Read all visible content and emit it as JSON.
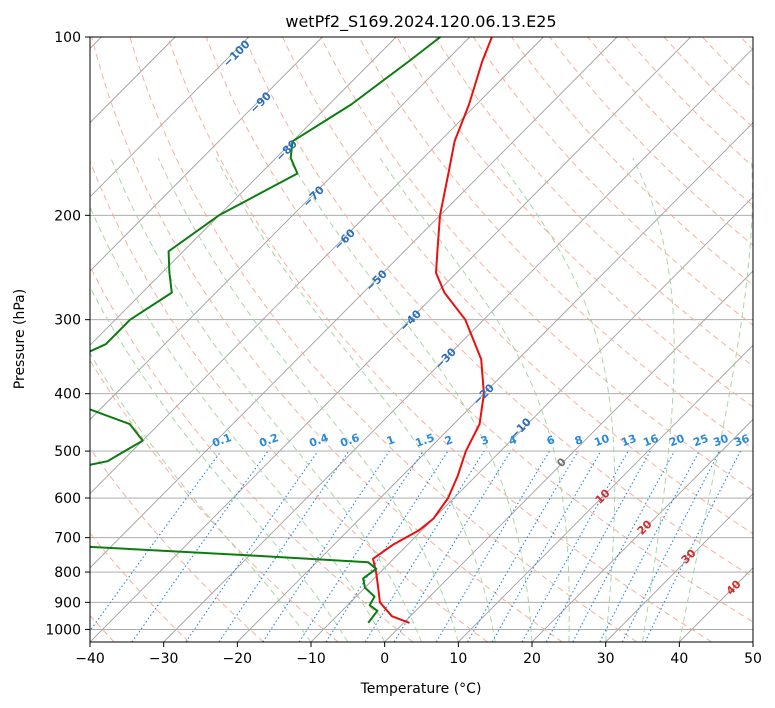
{
  "chart_data": {
    "type": "skew-t",
    "title": "wetPf2_S169.2024.120.06.13.E25",
    "xlabel": "Temperature (°C)",
    "ylabel": "Pressure (hPa)",
    "xlim": [
      -40,
      50
    ],
    "ylim": [
      1050,
      100
    ],
    "y_scale": "log",
    "grid": true,
    "xticks": [
      "−40",
      "−30",
      "−20",
      "−10",
      "0",
      "10",
      "20",
      "30",
      "40",
      "50"
    ],
    "xtick_values": [
      -40,
      -30,
      -20,
      -10,
      0,
      10,
      20,
      30,
      40,
      50
    ],
    "yticks": [
      "100",
      "200",
      "300",
      "400",
      "500",
      "600",
      "700",
      "800",
      "900",
      "1000"
    ],
    "ytick_values": [
      100,
      200,
      300,
      400,
      500,
      600,
      700,
      800,
      900,
      1000
    ],
    "series": [
      {
        "name": "",
        "role": "temperature",
        "color": "#e8110f",
        "points": [
          [
            975,
            0.8
          ],
          [
            950,
            -2.5
          ],
          [
            900,
            -6.0
          ],
          [
            850,
            -8.2
          ],
          [
            800,
            -10.6
          ],
          [
            760,
            -12.8
          ],
          [
            720,
            -12.0
          ],
          [
            680,
            -10.4
          ],
          [
            650,
            -10.0
          ],
          [
            600,
            -10.8
          ],
          [
            550,
            -12.5
          ],
          [
            500,
            -14.7
          ],
          [
            450,
            -16.5
          ],
          [
            400,
            -20.0
          ],
          [
            350,
            -25.0
          ],
          [
            300,
            -32.5
          ],
          [
            270,
            -39.0
          ],
          [
            250,
            -42.8
          ],
          [
            230,
            -45.5
          ],
          [
            200,
            -50.0
          ],
          [
            170,
            -54.5
          ],
          [
            150,
            -58.0
          ],
          [
            130,
            -61.0
          ],
          [
            110,
            -65.0
          ],
          [
            100,
            -67.0
          ]
        ]
      },
      {
        "name": "",
        "role": "dewpoint",
        "color": "#0b7d10",
        "points": [
          [
            975,
            -4.8
          ],
          [
            930,
            -5.2
          ],
          [
            910,
            -7.0
          ],
          [
            880,
            -7.5
          ],
          [
            850,
            -10.0
          ],
          [
            820,
            -11.5
          ],
          [
            790,
            -11.0
          ],
          [
            770,
            -13.0
          ],
          [
            750,
            -30.0
          ],
          [
            720,
            -58.0
          ],
          [
            690,
            -79.0
          ],
          [
            600,
            -90.0
          ],
          [
            560,
            -72.0
          ],
          [
            520,
            -62.0
          ],
          [
            480,
            -60.0
          ],
          [
            450,
            -64.0
          ],
          [
            420,
            -73.0
          ],
          [
            400,
            -80.0
          ],
          [
            380,
            -84.0
          ],
          [
            330,
            -78.0
          ],
          [
            300,
            -78.0
          ],
          [
            270,
            -76.0
          ],
          [
            250,
            -79.0
          ],
          [
            230,
            -82.0
          ],
          [
            200,
            -80.0
          ],
          [
            170,
            -75.0
          ],
          [
            160,
            -78.0
          ],
          [
            150,
            -80.0
          ],
          [
            130,
            -77.0
          ],
          [
            110,
            -75.0
          ],
          [
            100,
            -74.0
          ]
        ]
      }
    ],
    "dry_adiabat_labels": [
      "−100",
      "−90",
      "−80",
      "−70",
      "−60",
      "−50",
      "−40",
      "−30",
      "−20",
      "−10",
      "0",
      "10",
      "20",
      "30",
      "40"
    ],
    "dry_adiabat_values": [
      -100,
      -90,
      -80,
      -70,
      -60,
      -50,
      -40,
      -30,
      -20,
      -10,
      0,
      10,
      20,
      30,
      40
    ],
    "mixing_ratio_labels": [
      "0.1",
      "0.2",
      "0.4",
      "0.6",
      "1",
      "1.5",
      "2",
      "3",
      "4",
      "6",
      "8",
      "10",
      "13",
      "16",
      "20",
      "25",
      "30",
      "36"
    ],
    "mixing_ratio_values": [
      0.1,
      0.2,
      0.4,
      0.6,
      1,
      1.5,
      2,
      3,
      4,
      6,
      8,
      10,
      13,
      16,
      20,
      25,
      30,
      36
    ],
    "colors": {
      "temperature": "#e8110f",
      "dewpoint": "#0b7d10",
      "isotherm": "#a0a0a0",
      "dry_adiabat": "#f4a58a",
      "moist_adiabat": "#9fd39f",
      "mixing_ratio": "#2a8ad8",
      "label_blue": "#2a6fbe",
      "label_red": "#d62a2a",
      "label_gray": "#707070"
    }
  }
}
